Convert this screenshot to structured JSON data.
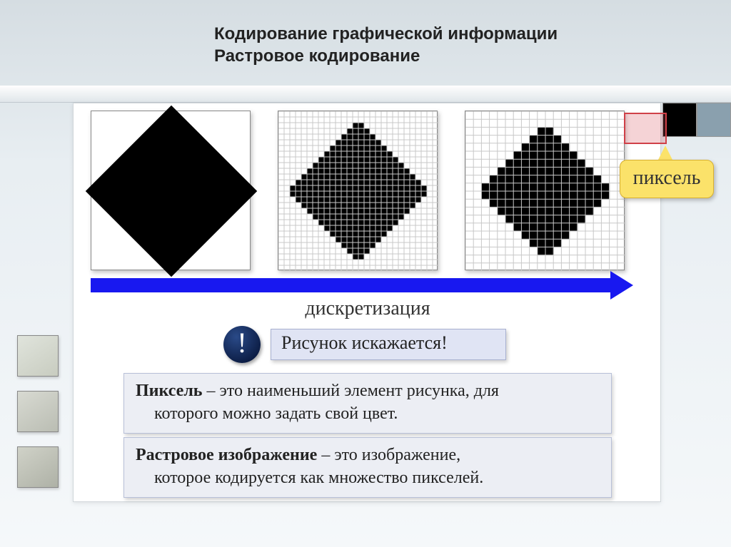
{
  "header": {
    "line1": "Кодирование графической информации",
    "line2": "Растровое кодирование"
  },
  "arrow": {
    "label": "дискретизация",
    "color": "#1818f0"
  },
  "exclaim": "!",
  "warning": "Рисунок искажается!",
  "pixel_label": "пиксель",
  "def_pixel": {
    "bold": "Пиксель",
    "rest1": " – это наименьший элемент рисунка, для",
    "rest2": "которого можно задать свой цвет."
  },
  "def_raster": {
    "bold": "Растровое изображение",
    "rest1": " – это изображение,",
    "rest2": "которое кодируется как множество пикселей."
  },
  "grid_medium": {
    "cells": 28,
    "grid_color": "#c8c8c8",
    "fill_color": "#000000"
  },
  "grid_coarse": {
    "cells": 20,
    "grid_color": "#c8c8c8",
    "fill_color": "#000000"
  },
  "corner_pixels": {
    "colors": [
      "#000000",
      "#8aa0ae",
      "#000000",
      "#e0e6ea"
    ]
  },
  "colors": {
    "panel_bg": "#ffffff",
    "callout_bg": "#fbe26a",
    "warn_bg": "#e0e4f4",
    "def_bg": "#eceef4",
    "zoom_border": "#d04048"
  }
}
